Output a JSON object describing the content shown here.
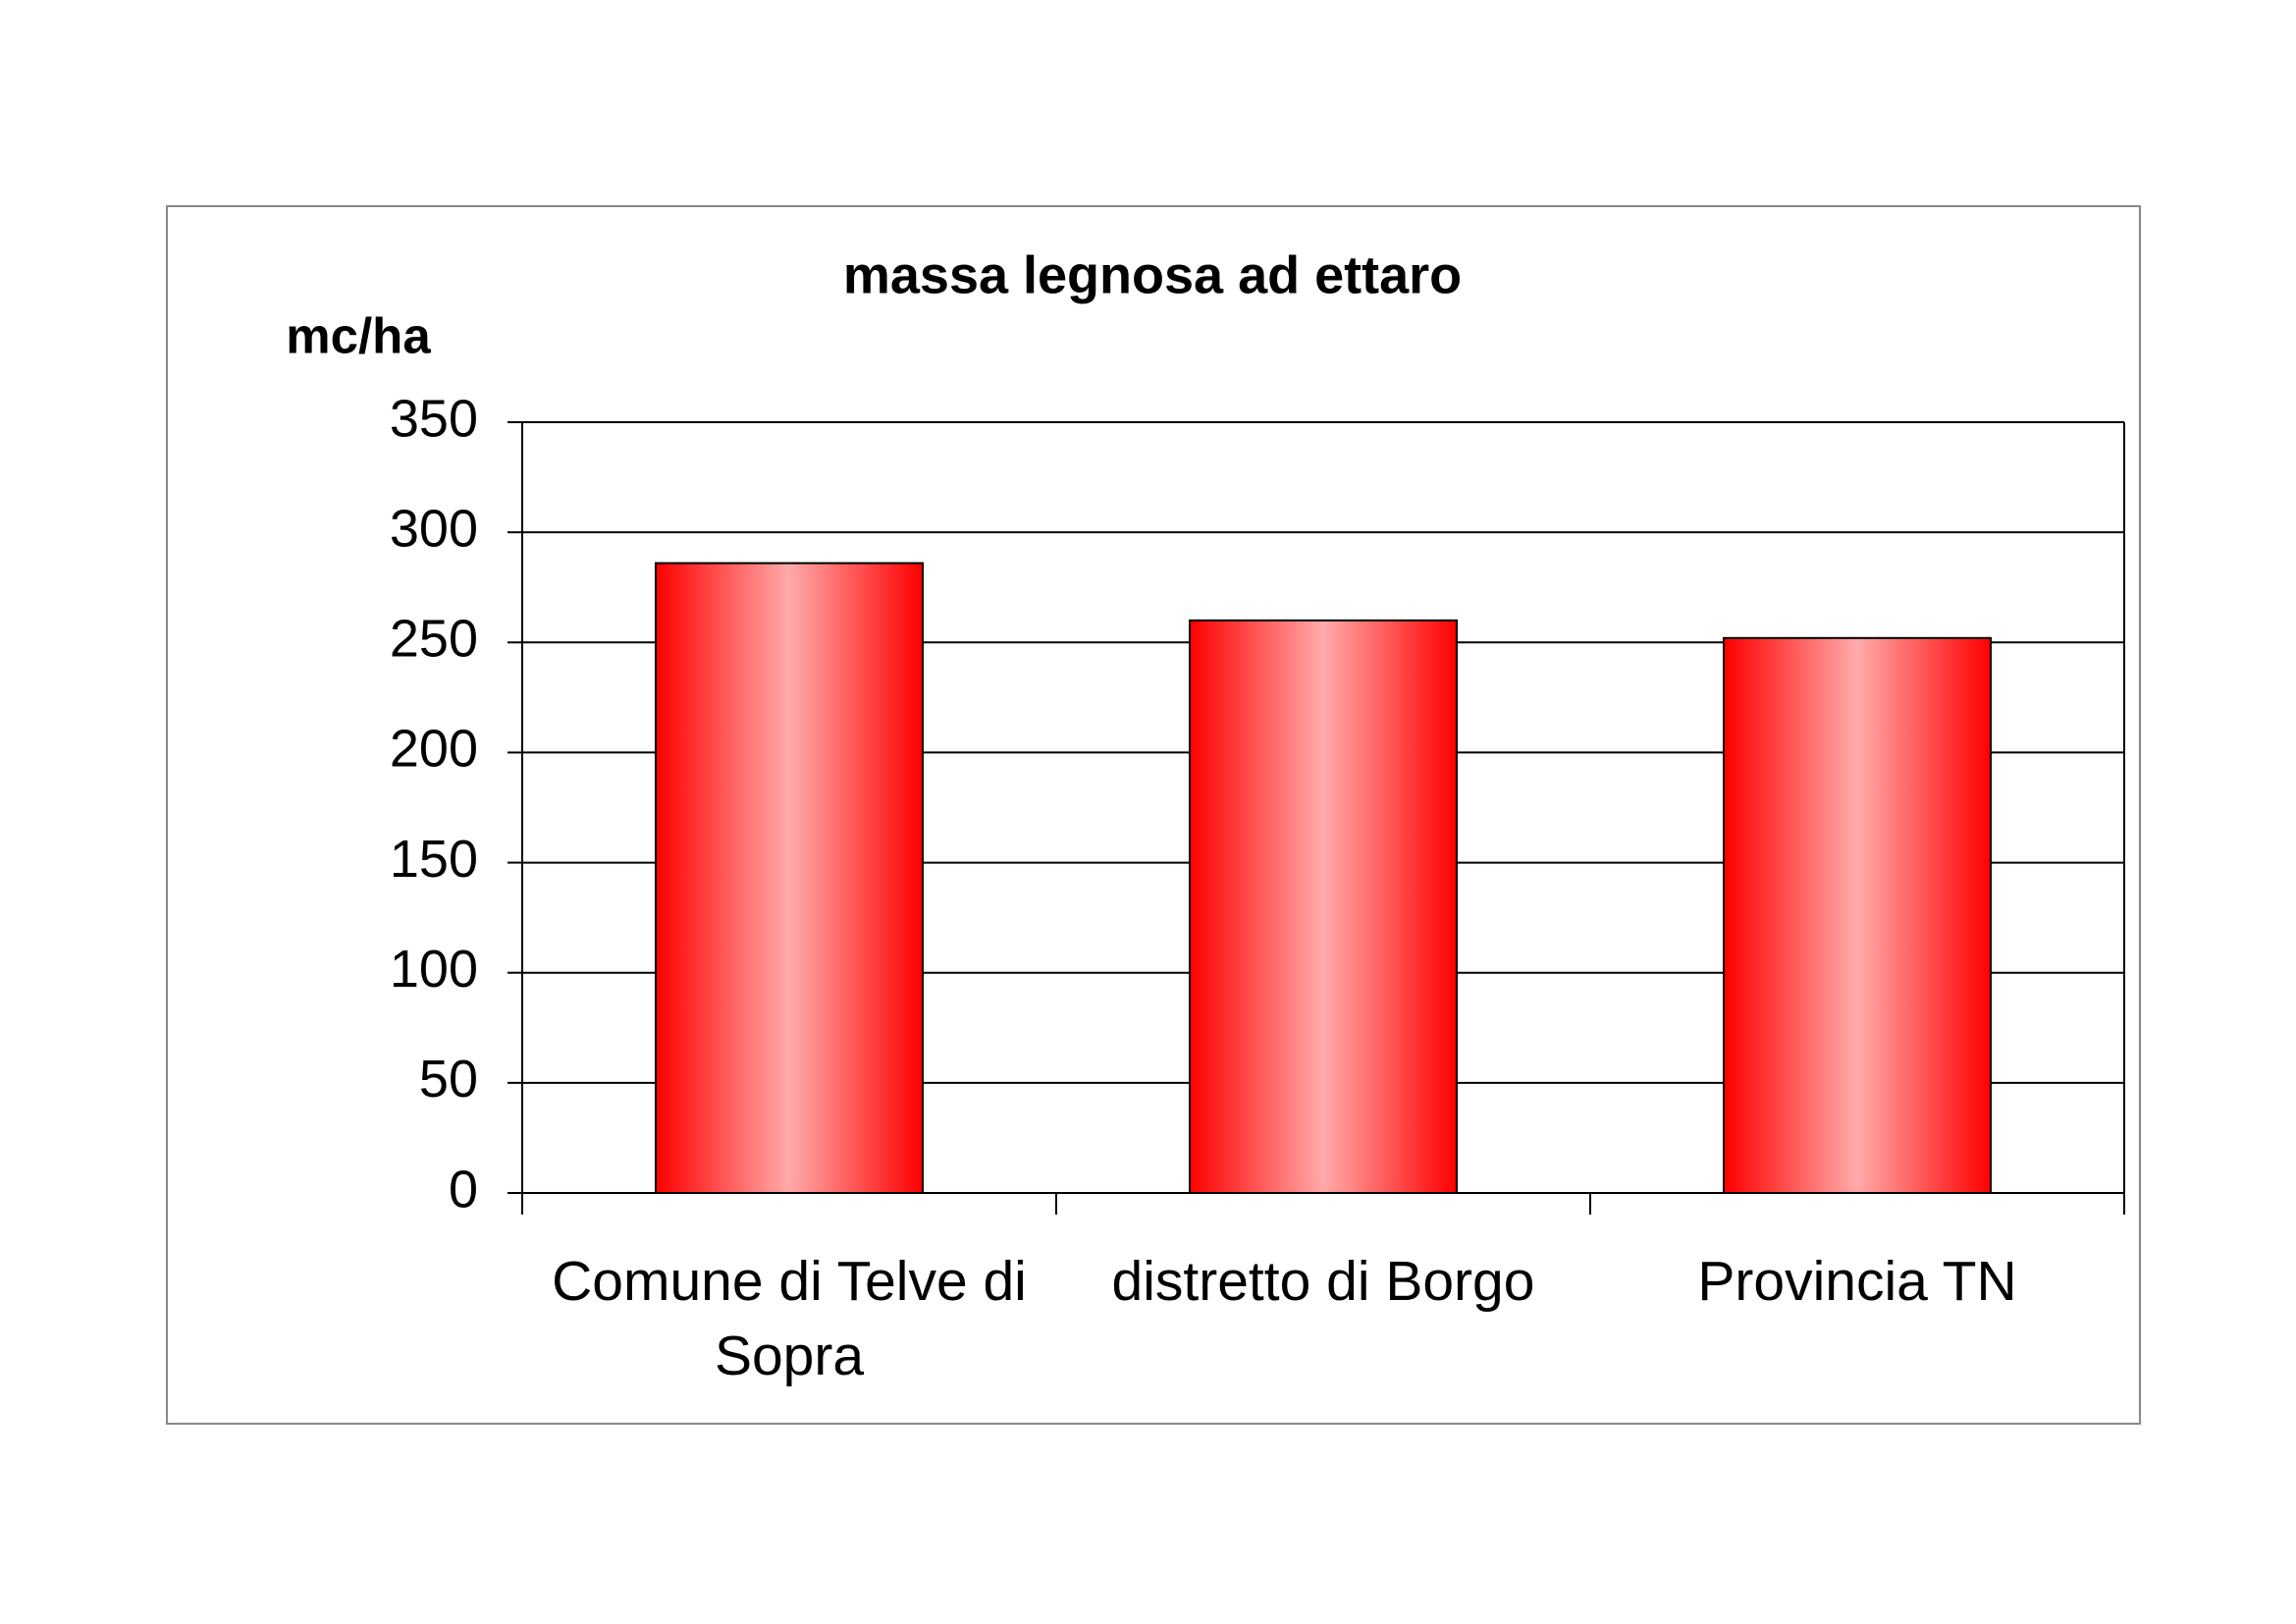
{
  "chart_data": {
    "type": "bar",
    "title": "massa legnosa ad ettaro",
    "y_label": "mc/ha",
    "categories": [
      "Comune di Telve di Sopra",
      "distretto di Borgo",
      "Provincia TN"
    ],
    "values": [
      286,
      260,
      252
    ],
    "color": "#ff0000",
    "ylim": [
      0,
      350
    ],
    "yticks": [
      0,
      50,
      100,
      150,
      200,
      250,
      300,
      350
    ],
    "grid": true
  }
}
